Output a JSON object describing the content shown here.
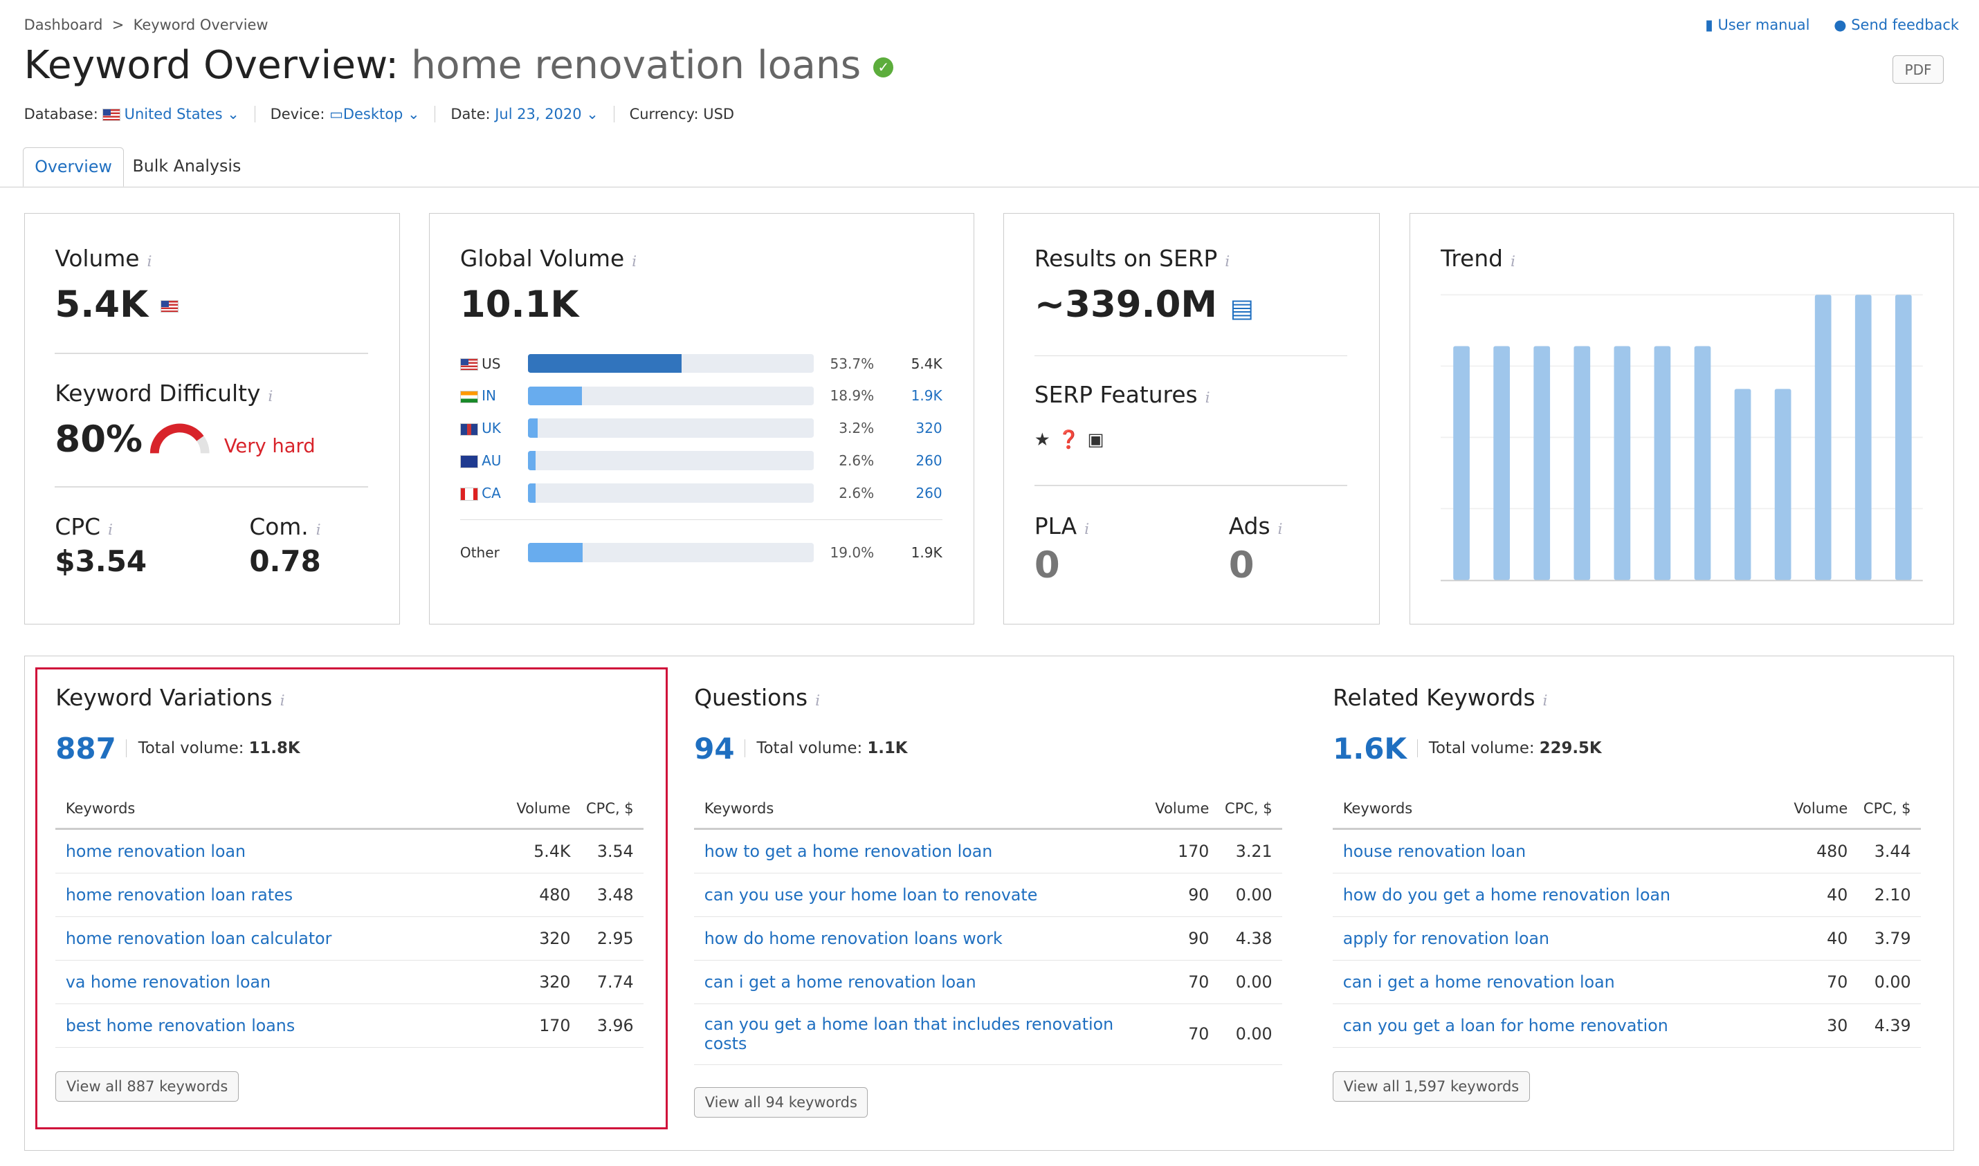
{
  "breadcrumb": [
    "Dashboard",
    "Keyword Overview"
  ],
  "header": {
    "title_prefix": "Keyword Overview:",
    "keyword": "home renovation loans",
    "user_manual": "User manual",
    "send_feedback": "Send feedback",
    "pdf": "PDF"
  },
  "meta": {
    "database_label": "Database:",
    "database": "United States",
    "device_label": "Device:",
    "device": "Desktop",
    "date_label": "Date:",
    "date": "Jul 23, 2020",
    "currency": "Currency: USD"
  },
  "tabs": [
    "Overview",
    "Bulk Analysis"
  ],
  "volume": {
    "title": "Volume",
    "value": "5.4K"
  },
  "difficulty": {
    "title": "Keyword Difficulty",
    "value": "80%",
    "label": "Very hard",
    "percent": 80,
    "color": "#d8232a"
  },
  "cpc": {
    "title": "CPC",
    "value": "$3.54"
  },
  "com": {
    "title": "Com.",
    "value": "0.78"
  },
  "global": {
    "title": "Global Volume",
    "value": "10.1K",
    "rows": [
      {
        "code": "US",
        "pct": "53.7%",
        "val": "5.4K",
        "share": 53.7,
        "flag": "us"
      },
      {
        "code": "IN",
        "pct": "18.9%",
        "val": "1.9K",
        "share": 18.9,
        "flag": "in"
      },
      {
        "code": "UK",
        "pct": "3.2%",
        "val": "320",
        "share": 3.2,
        "flag": "uk"
      },
      {
        "code": "AU",
        "pct": "2.6%",
        "val": "260",
        "share": 2.6,
        "flag": "au"
      },
      {
        "code": "CA",
        "pct": "2.6%",
        "val": "260",
        "share": 2.6,
        "flag": "ca"
      }
    ],
    "other": {
      "code": "Other",
      "pct": "19.0%",
      "val": "1.9K",
      "share": 19.0
    }
  },
  "serp": {
    "title": "Results on SERP",
    "value": "~339.0M",
    "features_title": "SERP Features",
    "features": [
      "star-icon",
      "question-icon",
      "ad-icon"
    ],
    "pla_title": "PLA",
    "pla": "0",
    "ads_title": "Ads",
    "ads": "0"
  },
  "chart_data": {
    "type": "bar",
    "title": "Trend",
    "values": [
      0.82,
      0.82,
      0.82,
      0.82,
      0.82,
      0.82,
      0.82,
      0.67,
      0.67,
      1.0,
      1.0,
      1.0
    ],
    "ylim": [
      0,
      1
    ],
    "grid": true,
    "color": "#9fc6eb"
  },
  "panels": [
    {
      "title": "Keyword Variations",
      "count": "887",
      "total_label": "Total volume:",
      "total": "11.8K",
      "cols": [
        "Keywords",
        "Volume",
        "CPC, $"
      ],
      "rows": [
        [
          "home renovation loan",
          "5.4K",
          "3.54"
        ],
        [
          "home renovation loan rates",
          "480",
          "3.48"
        ],
        [
          "home renovation loan calculator",
          "320",
          "2.95"
        ],
        [
          "va home renovation loan",
          "320",
          "7.74"
        ],
        [
          "best home renovation loans",
          "170",
          "3.96"
        ]
      ],
      "button": "View all 887 keywords"
    },
    {
      "title": "Questions",
      "count": "94",
      "total_label": "Total volume:",
      "total": "1.1K",
      "cols": [
        "Keywords",
        "Volume",
        "CPC, $"
      ],
      "rows": [
        [
          "how to get a home renovation loan",
          "170",
          "3.21"
        ],
        [
          "can you use your home loan to renovate",
          "90",
          "0.00"
        ],
        [
          "how do home renovation loans work",
          "90",
          "4.38"
        ],
        [
          "can i get a home renovation loan",
          "70",
          "0.00"
        ],
        [
          "can you get a home loan that includes renovation costs",
          "70",
          "0.00"
        ]
      ],
      "button": "View all 94 keywords"
    },
    {
      "title": "Related Keywords",
      "count": "1.6K",
      "total_label": "Total volume:",
      "total": "229.5K",
      "cols": [
        "Keywords",
        "Volume",
        "CPC, $"
      ],
      "rows": [
        [
          "house renovation loan",
          "480",
          "3.44"
        ],
        [
          "how do you get a home renovation loan",
          "40",
          "2.10"
        ],
        [
          "apply for renovation loan",
          "40",
          "3.79"
        ],
        [
          "can i get a home renovation loan",
          "70",
          "0.00"
        ],
        [
          "can you get a loan for home renovation",
          "30",
          "4.39"
        ]
      ],
      "button": "View all 1,597 keywords"
    }
  ],
  "highlight_color": "#d0103a"
}
